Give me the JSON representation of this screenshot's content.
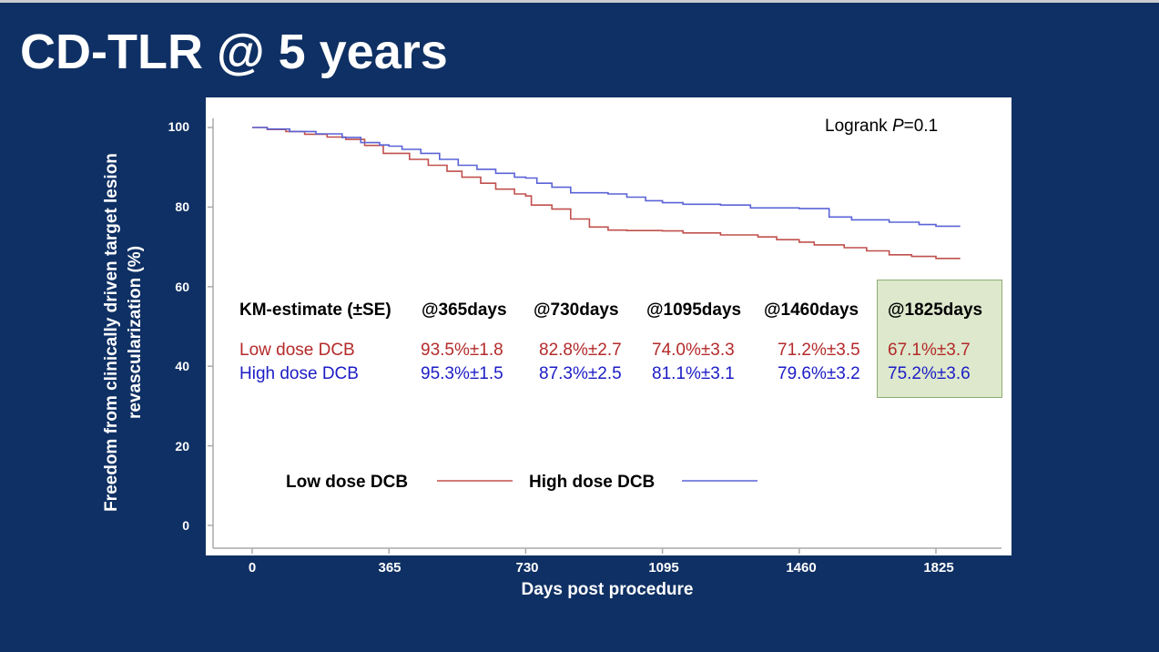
{
  "slide": {
    "title": "CD-TLR @ 5 years"
  },
  "chart_data": {
    "type": "line",
    "title": "",
    "xlabel": "Days post procedure",
    "ylabel": "Freedom from clinically driven target lesion revascularization (%)",
    "xlim": [
      0,
      1900
    ],
    "ylim": [
      0,
      100
    ],
    "x_ticks": [
      "0",
      "365",
      "730",
      "1095",
      "1460",
      "1825"
    ],
    "y_ticks": [
      "0",
      "20",
      "40",
      "60",
      "80",
      "100"
    ],
    "annotation": {
      "prefix": "Logrank ",
      "p_symbol": "P",
      "suffix": "=0.1"
    },
    "legend": {
      "position": "bottom-left",
      "entries": [
        "Low dose DCB",
        "High dose DCB"
      ]
    },
    "colors": {
      "low": "#c0504d",
      "high": "#5a63d6"
    },
    "series": [
      {
        "name": "Low dose DCB",
        "points": [
          [
            0,
            100
          ],
          [
            40,
            99.5
          ],
          [
            90,
            99
          ],
          [
            140,
            98.3
          ],
          [
            200,
            97.6
          ],
          [
            250,
            97
          ],
          [
            300,
            95.5
          ],
          [
            350,
            93.5
          ],
          [
            420,
            92
          ],
          [
            470,
            90.5
          ],
          [
            520,
            89
          ],
          [
            560,
            87.5
          ],
          [
            610,
            86
          ],
          [
            650,
            84.5
          ],
          [
            700,
            83.3
          ],
          [
            730,
            82.8
          ],
          [
            745,
            80.5
          ],
          [
            800,
            79.5
          ],
          [
            850,
            77
          ],
          [
            900,
            75
          ],
          [
            950,
            74.2
          ],
          [
            1000,
            74.1
          ],
          [
            1095,
            74
          ],
          [
            1150,
            73.5
          ],
          [
            1250,
            73
          ],
          [
            1350,
            72.5
          ],
          [
            1400,
            71.8
          ],
          [
            1460,
            71.2
          ],
          [
            1500,
            70.5
          ],
          [
            1580,
            69.8
          ],
          [
            1640,
            69
          ],
          [
            1700,
            68
          ],
          [
            1760,
            67.6
          ],
          [
            1825,
            67.1
          ],
          [
            1890,
            67.1
          ]
        ]
      },
      {
        "name": "High dose DCB",
        "points": [
          [
            0,
            100
          ],
          [
            40,
            99.6
          ],
          [
            100,
            99
          ],
          [
            170,
            98.4
          ],
          [
            240,
            97.5
          ],
          [
            290,
            96.2
          ],
          [
            340,
            95.6
          ],
          [
            365,
            95.3
          ],
          [
            400,
            94.5
          ],
          [
            450,
            93.5
          ],
          [
            500,
            92
          ],
          [
            550,
            90.5
          ],
          [
            600,
            89.5
          ],
          [
            650,
            88.5
          ],
          [
            700,
            87.5
          ],
          [
            730,
            87.3
          ],
          [
            760,
            86
          ],
          [
            800,
            85
          ],
          [
            850,
            83.6
          ],
          [
            950,
            83.3
          ],
          [
            1000,
            82.5
          ],
          [
            1050,
            81.6
          ],
          [
            1095,
            81.1
          ],
          [
            1150,
            80.7
          ],
          [
            1250,
            80.5
          ],
          [
            1330,
            79.8
          ],
          [
            1460,
            79.6
          ],
          [
            1520,
            79.6
          ],
          [
            1540,
            77.5
          ],
          [
            1600,
            76.8
          ],
          [
            1700,
            76.2
          ],
          [
            1780,
            75.6
          ],
          [
            1825,
            75.2
          ],
          [
            1890,
            75.2
          ]
        ]
      }
    ],
    "km_table": {
      "header": [
        "KM-estimate (±SE)",
        "@365days",
        "@730days",
        "@1095days",
        "@1460days",
        "@1825days"
      ],
      "rows": [
        {
          "label": "Low dose DCB",
          "values": [
            "93.5%±1.8",
            "82.8%±2.7",
            "74.0%±3.3",
            "71.2%±3.5",
            "67.1%±3.7"
          ]
        },
        {
          "label": "High dose DCB",
          "values": [
            "95.3%±1.5",
            "87.3%±2.5",
            "81.1%±3.1",
            "79.6%±3.2",
            "75.2%±3.6"
          ]
        }
      ],
      "highlighted_column": "@1825days"
    }
  }
}
